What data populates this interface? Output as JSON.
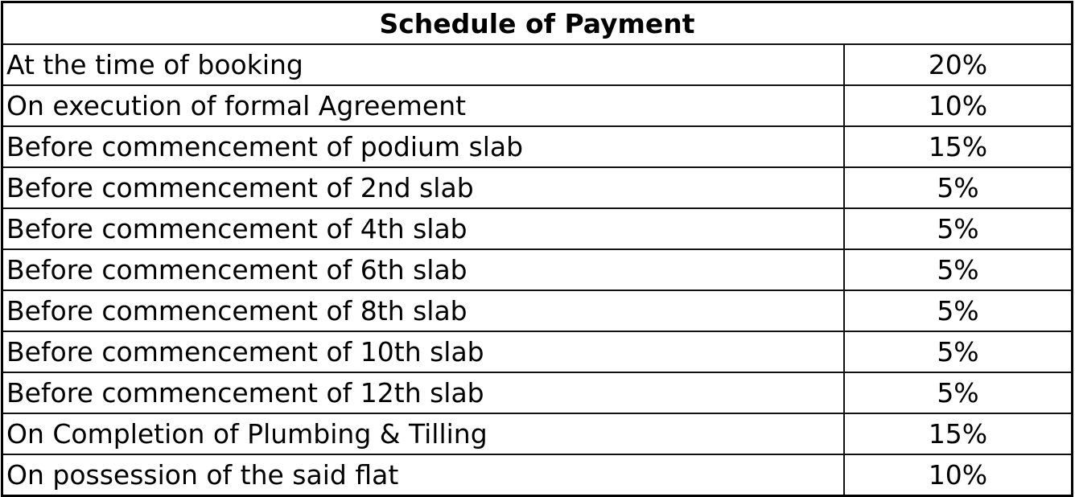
{
  "title": "Schedule of Payment",
  "rows": [
    {
      "stage": "At the time of booking",
      "percent": "20%"
    },
    {
      "stage": "On execution of formal Agreement",
      "percent": "10%"
    },
    {
      "stage": "Before commencement of podium slab",
      "percent": "15%"
    },
    {
      "stage": "Before commencement of 2nd slab",
      "percent": "5%"
    },
    {
      "stage": "Before commencement of 4th slab",
      "percent": "5%"
    },
    {
      "stage": "Before commencement of 6th slab",
      "percent": "5%"
    },
    {
      "stage": "Before commencement of 8th slab",
      "percent": "5%"
    },
    {
      "stage": "Before commencement of 10th slab",
      "percent": "5%"
    },
    {
      "stage": "Before commencement of 12th slab",
      "percent": "5%"
    },
    {
      "stage": "On Completion of Plumbing & Tilling",
      "percent": "15%"
    },
    {
      "stage": "On possession of the said flat",
      "percent": "10%"
    }
  ]
}
